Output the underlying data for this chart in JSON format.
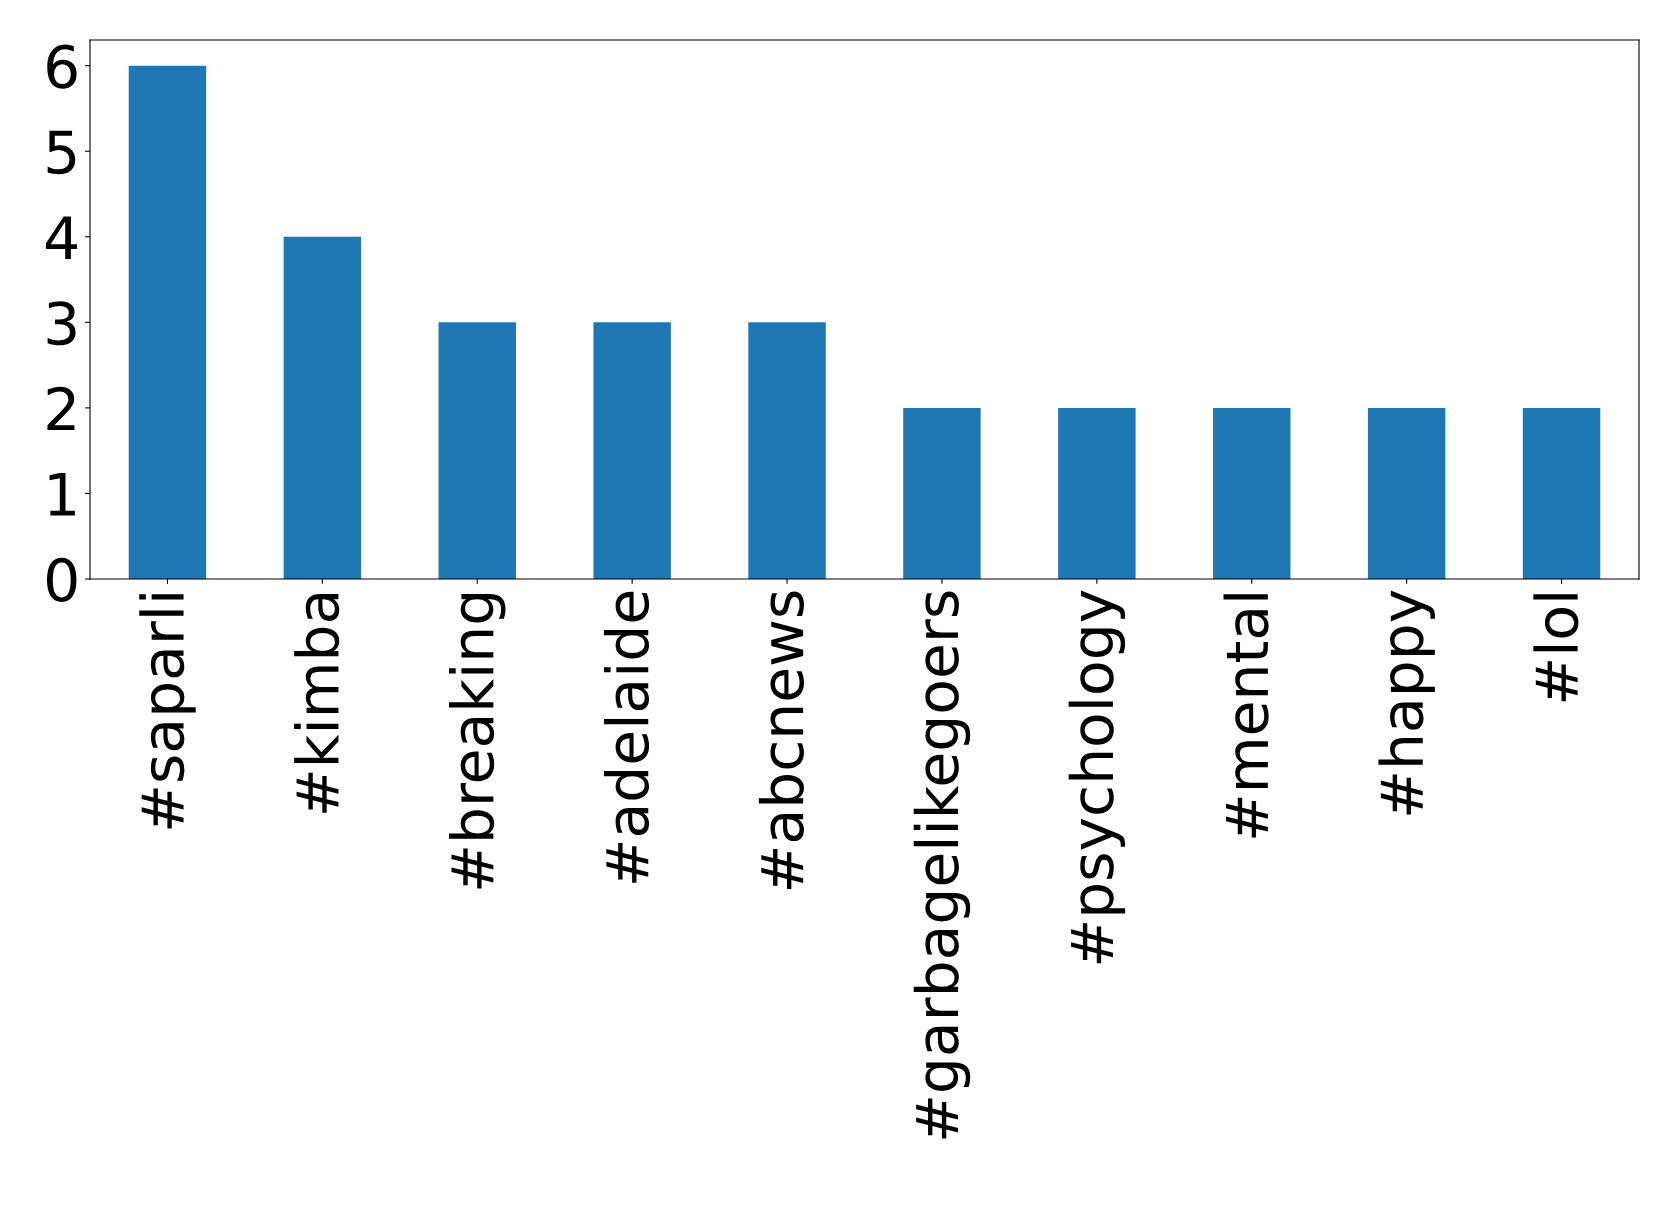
{
  "chart_data": {
    "type": "bar",
    "categories": [
      "#saparli",
      "#kimba",
      "#breaking",
      "#adelaide",
      "#abcnews",
      "#garbagelikegoers",
      "#psychology",
      "#mental",
      "#happy",
      "#lol"
    ],
    "values": [
      6,
      4,
      3,
      3,
      3,
      2,
      2,
      2,
      2,
      2
    ],
    "color": "#1f77b4",
    "ylim": [
      0,
      6.3
    ],
    "yticks": [
      0,
      1,
      2,
      3,
      4,
      5,
      6
    ],
    "grid": false,
    "legend": false
  }
}
